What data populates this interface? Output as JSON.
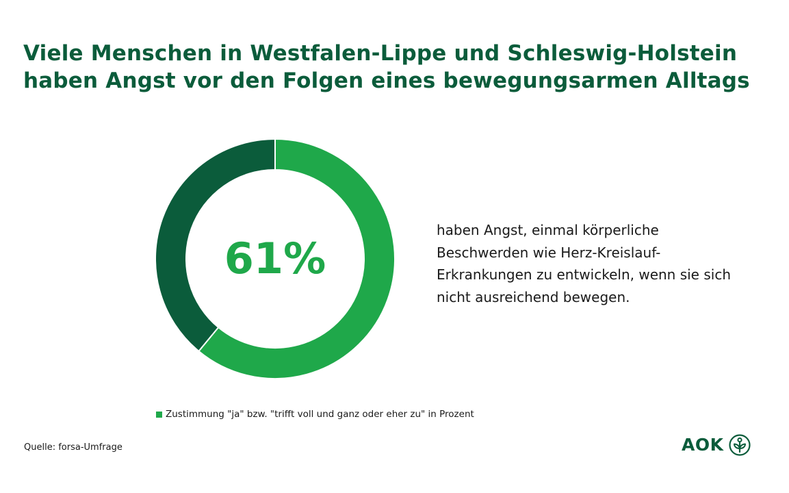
{
  "title": "Viele Menschen in Westfalen-Lippe und Schleswig-Holstein haben Angst vor den Folgen eines bewegungsarmen Alltags",
  "description": "haben Angst, einmal körperliche Beschwerden wie Herz-Kreislauf-Erkrankungen zu entwickeln, wenn sie sich nicht ausreichend bewegen.",
  "source": "Quelle: forsa-Umfrage",
  "logo": {
    "text": "AOK",
    "icon": "aok-tree-icon"
  },
  "colors": {
    "title": "#0b5c3b",
    "accent": "#1fa84a",
    "remainder": "#0b5c3b"
  },
  "chart_data": {
    "type": "pie",
    "title": "",
    "categories": [
      "Zustimmung \"ja\" bzw. \"trifft voll und ganz oder eher zu\" in Prozent",
      ""
    ],
    "values": [
      61,
      39
    ],
    "center_label": "61%",
    "legend": {
      "entries": [
        "Zustimmung \"ja\" bzw. \"trifft voll und ganz oder eher zu\" in Prozent"
      ],
      "placement": "bottom"
    },
    "unit": "%",
    "start": "top",
    "direction": "clockwise",
    "hole": true
  }
}
